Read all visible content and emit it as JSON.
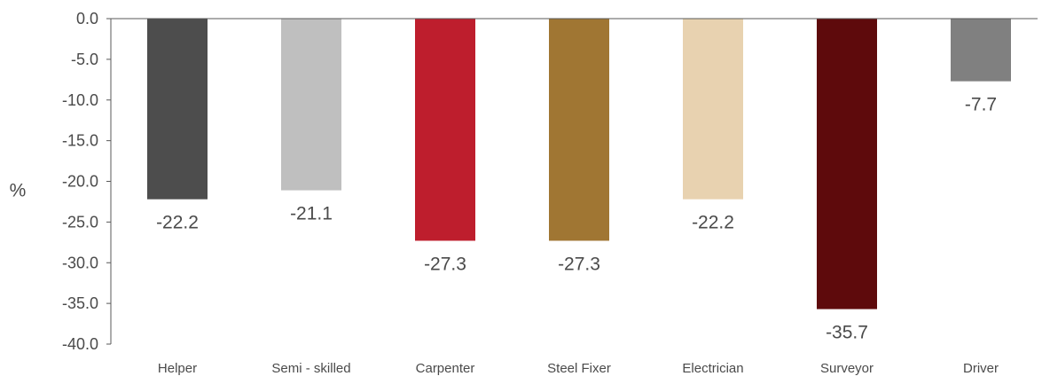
{
  "chart_data": {
    "type": "bar",
    "title": "",
    "xlabel": "",
    "ylabel": "%",
    "ylim": [
      -40,
      0
    ],
    "yticks": [
      0,
      -5,
      -10,
      -15,
      -20,
      -25,
      -30,
      -35,
      -40
    ],
    "ytick_labels": [
      "0.0",
      "-5.0",
      "-10.0",
      "-15.0",
      "-20.0",
      "-25.0",
      "-30.0",
      "-35.0",
      "-40.0"
    ],
    "grid": false,
    "legend": "none",
    "categories": [
      "Helper",
      "Semi - skilled",
      "Carpenter",
      "Steel Fixer",
      "Electrician",
      "Surveyor",
      "Driver"
    ],
    "values": [
      -22.2,
      -21.1,
      -27.3,
      -27.3,
      -22.2,
      -35.7,
      -7.7
    ],
    "data_labels": [
      "-22.2",
      "-21.1",
      "-27.3",
      "-27.3",
      "-22.2",
      "-35.7",
      "-7.7"
    ],
    "colors": [
      "#4d4d4d",
      "#bfbfbf",
      "#be1e2d",
      "#a07633",
      "#e8d2b0",
      "#5e0a0c",
      "#808080"
    ]
  }
}
